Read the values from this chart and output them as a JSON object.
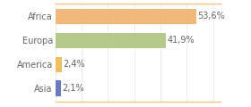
{
  "categories": [
    "Asia",
    "America",
    "Europa",
    "Africa"
  ],
  "values": [
    2.1,
    2.4,
    41.9,
    53.6
  ],
  "labels": [
    "2,1%",
    "2,4%",
    "41,9%",
    "53,6%"
  ],
  "bar_colors": [
    "#6b7abf",
    "#f0c060",
    "#b5c98a",
    "#f0b87a"
  ],
  "xlim": [
    0,
    63
  ],
  "background_color": "#ffffff",
  "tick_fontsize": 7.0,
  "label_fontsize": 7.0,
  "bar_height": 0.65,
  "grid_color": "#e8e8e8",
  "border_color": "#f5c48a",
  "label_color": "#666666",
  "tick_color": "#666666"
}
